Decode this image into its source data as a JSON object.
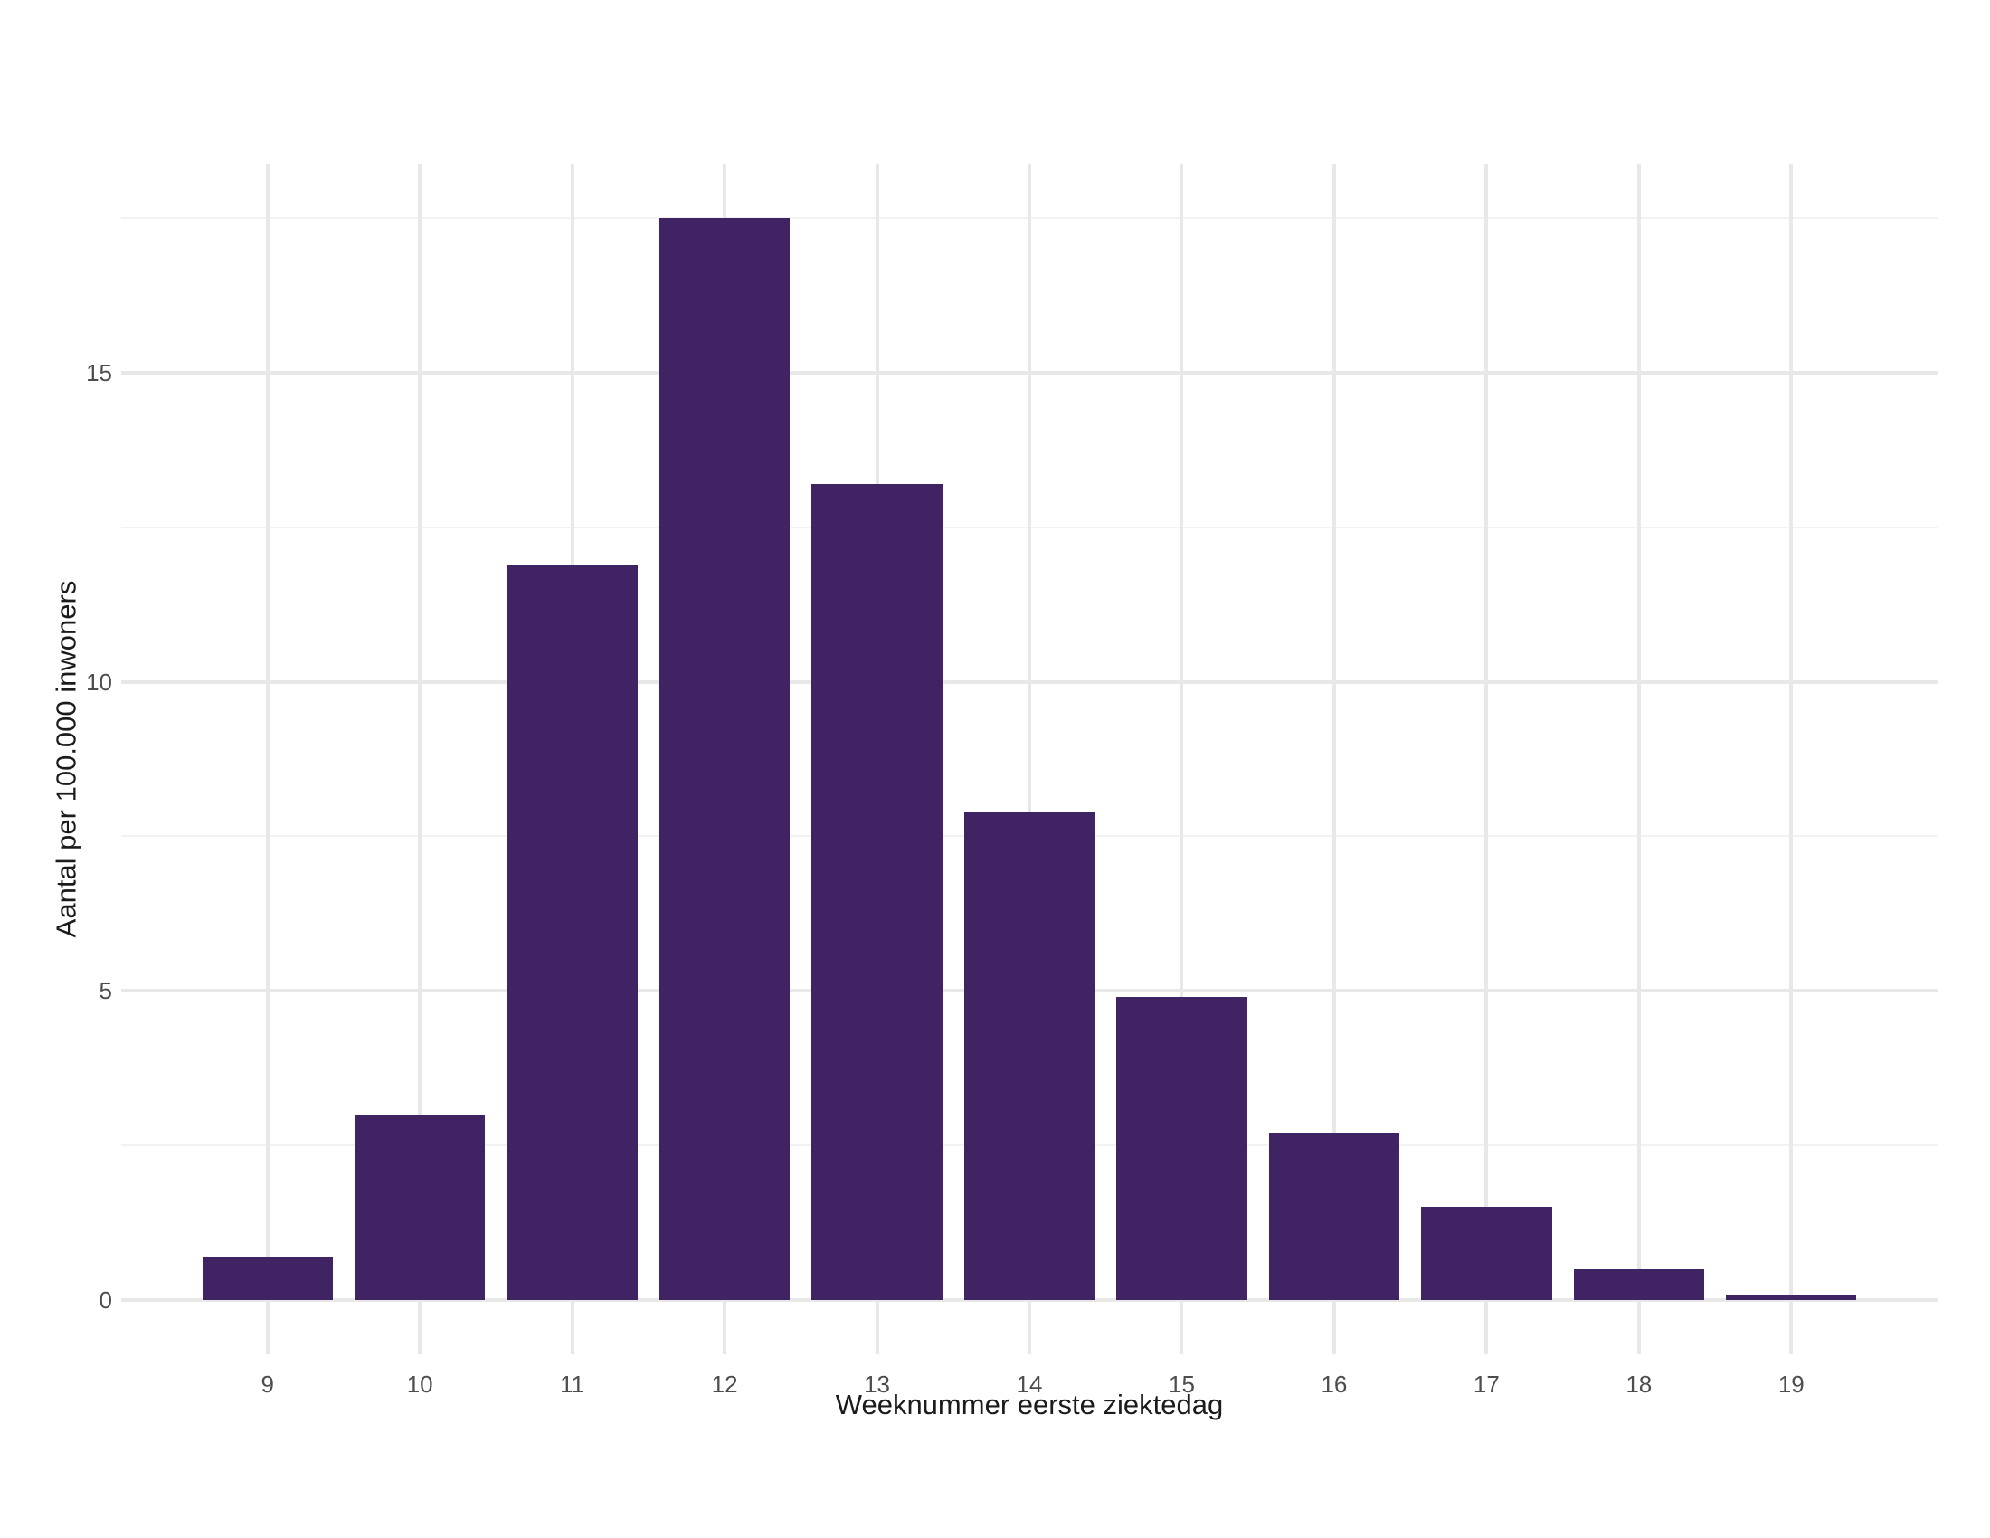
{
  "figure": {
    "background": "#ffffff",
    "title": ""
  },
  "chart_data": {
    "type": "bar",
    "title": "",
    "xlabel": "Weeknummer eerste ziektedag",
    "ylabel": "Aantal per 100.000 inwoners",
    "categories": [
      9,
      10,
      11,
      12,
      13,
      14,
      15,
      16,
      17,
      18,
      19
    ],
    "x_tick_labels": [
      "9",
      "10",
      "11",
      "12",
      "13",
      "14",
      "15",
      "16",
      "17",
      "18",
      "19"
    ],
    "values": [
      0.7,
      3.0,
      11.9,
      17.5,
      13.2,
      7.9,
      4.9,
      2.7,
      1.5,
      0.5,
      0.08
    ],
    "y_major_ticks": [
      0,
      5,
      10,
      15
    ],
    "y_tick_labels": [
      "0",
      "5",
      "10",
      "15"
    ],
    "y_minor_ticks": [
      2.5,
      7.5,
      12.5,
      17.5
    ],
    "ylim": [
      -0.88,
      18.38
    ],
    "xlim": [
      8.04,
      19.96
    ],
    "bar_width_units": 0.857,
    "grid": "horizontal major+minor, vertical major at each category; no axis lines or ticks",
    "legend": "none",
    "colors": {
      "bar": "#402363",
      "grid_major": "#e8e8e8",
      "grid_minor": "#f2f2f2",
      "tick_label": "#4d4d4d",
      "axis_title": "#1b1b1b",
      "background": "#ffffff"
    }
  }
}
